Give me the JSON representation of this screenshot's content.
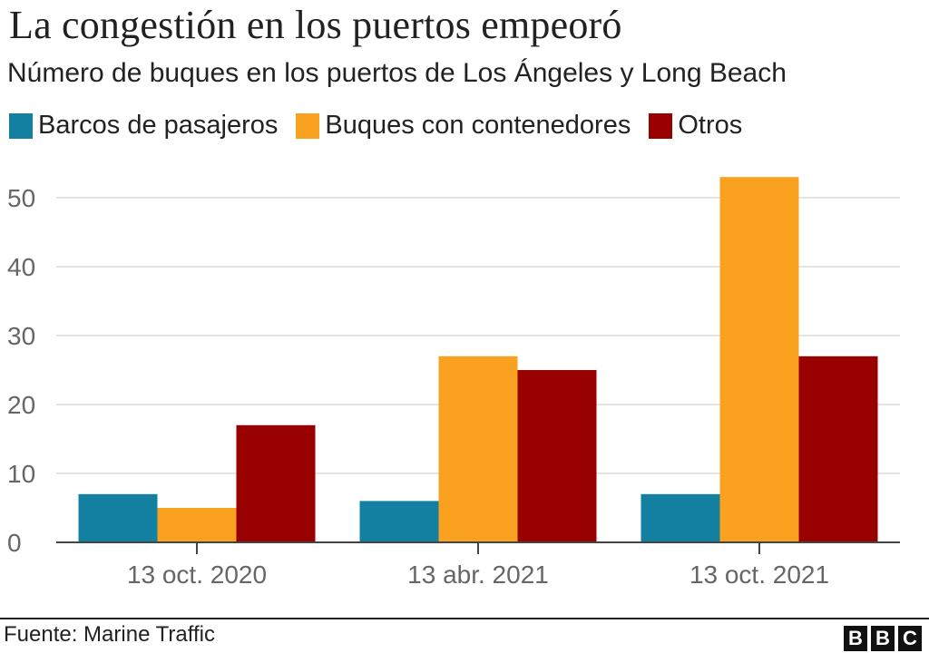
{
  "header": {
    "title": "La congestión en los puertos empeoró",
    "subtitle": "Número de buques en los puertos de Los Ángeles y Long Beach"
  },
  "legend": [
    {
      "label": "Barcos de pasajeros",
      "color": "#1380A1"
    },
    {
      "label": "Buques con contenedores",
      "color": "#FAA220"
    },
    {
      "label": "Otros",
      "color": "#990000"
    }
  ],
  "footer": {
    "source": "Fuente: Marine Traffic",
    "logo": [
      "B",
      "B",
      "C"
    ]
  },
  "chart_data": {
    "type": "bar",
    "title": "La congestión en los puertos empeoró",
    "subtitle": "Número de buques en los puertos de Los Ángeles y Long Beach",
    "categories": [
      "13 oct. 2020",
      "13 abr. 2021",
      "13 oct. 2021"
    ],
    "series": [
      {
        "name": "Barcos de pasajeros",
        "color": "#1380A1",
        "values": [
          7,
          6,
          7
        ]
      },
      {
        "name": "Buques con contenedores",
        "color": "#FAA220",
        "values": [
          5,
          27,
          53
        ]
      },
      {
        "name": "Otros",
        "color": "#990000",
        "values": [
          17,
          25,
          27
        ]
      }
    ],
    "xlabel": "",
    "ylabel": "",
    "ylim": [
      0,
      50
    ],
    "yticks": [
      0,
      10,
      20,
      30,
      40,
      50
    ],
    "grid": true,
    "legend_position": "top-left"
  }
}
